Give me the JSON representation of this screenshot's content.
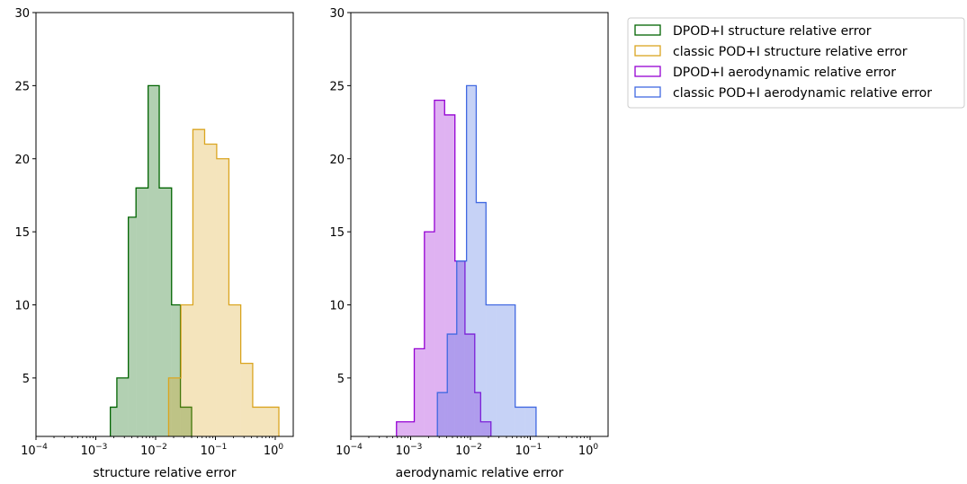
{
  "chart_data": [
    {
      "type": "histogram",
      "xlabel": "structure relative error",
      "ylabel": "",
      "xscale": "log",
      "xlim": [
        0.0001,
        2
      ],
      "ylim": [
        1,
        30
      ],
      "xticks": [
        {
          "value": 0.0001,
          "base": "10",
          "exp": "−4"
        },
        {
          "value": 0.001,
          "base": "10",
          "exp": "−3"
        },
        {
          "value": 0.01,
          "base": "10",
          "exp": "−2"
        },
        {
          "value": 0.1,
          "base": "10",
          "exp": "−1"
        },
        {
          "value": 1,
          "base": "10",
          "exp": "0"
        }
      ],
      "yticks": [
        5,
        10,
        15,
        20,
        25,
        30
      ],
      "series": [
        {
          "name": "DPOD+I structure relative error",
          "color": "#006400",
          "fill": "rgba(0,100,0,0.30)",
          "bins": [
            {
              "x0": 0.00175,
              "x1": 0.00225,
              "count": 3
            },
            {
              "x0": 0.00225,
              "x1": 0.0035,
              "count": 5
            },
            {
              "x0": 0.0035,
              "x1": 0.0047,
              "count": 16
            },
            {
              "x0": 0.0047,
              "x1": 0.0075,
              "count": 18
            },
            {
              "x0": 0.0075,
              "x1": 0.0115,
              "count": 25
            },
            {
              "x0": 0.0115,
              "x1": 0.0185,
              "count": 18
            },
            {
              "x0": 0.0185,
              "x1": 0.026,
              "count": 10
            },
            {
              "x0": 0.026,
              "x1": 0.04,
              "count": 3
            }
          ]
        },
        {
          "name": "classic POD+I structure relative error",
          "color": "#DAA520",
          "fill": "rgba(218,165,32,0.30)",
          "bins": [
            {
              "x0": 0.0165,
              "x1": 0.0265,
              "count": 5
            },
            {
              "x0": 0.0265,
              "x1": 0.042,
              "count": 10
            },
            {
              "x0": 0.042,
              "x1": 0.066,
              "count": 22
            },
            {
              "x0": 0.066,
              "x1": 0.105,
              "count": 21
            },
            {
              "x0": 0.105,
              "x1": 0.168,
              "count": 20
            },
            {
              "x0": 0.168,
              "x1": 0.265,
              "count": 10
            },
            {
              "x0": 0.265,
              "x1": 0.42,
              "count": 6
            },
            {
              "x0": 0.42,
              "x1": 1.15,
              "count": 3
            }
          ]
        }
      ]
    },
    {
      "type": "histogram",
      "xlabel": "aerodynamic relative error",
      "ylabel": "",
      "xscale": "log",
      "xlim": [
        0.0001,
        2
      ],
      "ylim": [
        1,
        30
      ],
      "xticks": [
        {
          "value": 0.0001,
          "base": "10",
          "exp": "−4"
        },
        {
          "value": 0.001,
          "base": "10",
          "exp": "−3"
        },
        {
          "value": 0.01,
          "base": "10",
          "exp": "−2"
        },
        {
          "value": 0.1,
          "base": "10",
          "exp": "−1"
        },
        {
          "value": 1,
          "base": "10",
          "exp": "0"
        }
      ],
      "yticks": [
        5,
        10,
        15,
        20,
        25,
        30
      ],
      "series": [
        {
          "name": "DPOD+I aerodynamic relative error",
          "color": "#9400D3",
          "fill": "rgba(148,0,211,0.30)",
          "bins": [
            {
              "x0": 0.00058,
              "x1": 0.00115,
              "count": 2
            },
            {
              "x0": 0.00115,
              "x1": 0.0017,
              "count": 7
            },
            {
              "x0": 0.0017,
              "x1": 0.0025,
              "count": 15
            },
            {
              "x0": 0.0025,
              "x1": 0.0037,
              "count": 24
            },
            {
              "x0": 0.0037,
              "x1": 0.0055,
              "count": 23
            },
            {
              "x0": 0.0055,
              "x1": 0.0081,
              "count": 13
            },
            {
              "x0": 0.0081,
              "x1": 0.0118,
              "count": 8
            },
            {
              "x0": 0.0118,
              "x1": 0.0148,
              "count": 4
            },
            {
              "x0": 0.0148,
              "x1": 0.022,
              "count": 2
            }
          ]
        },
        {
          "name": "classic POD+I aerodynamic relative error",
          "color": "#4169E1",
          "fill": "rgba(65,105,225,0.30)",
          "bins": [
            {
              "x0": 0.0028,
              "x1": 0.0041,
              "count": 4
            },
            {
              "x0": 0.0041,
              "x1": 0.0059,
              "count": 8
            },
            {
              "x0": 0.0059,
              "x1": 0.0086,
              "count": 13
            },
            {
              "x0": 0.0086,
              "x1": 0.0125,
              "count": 25
            },
            {
              "x0": 0.0125,
              "x1": 0.0182,
              "count": 17
            },
            {
              "x0": 0.0182,
              "x1": 0.0265,
              "count": 10
            },
            {
              "x0": 0.0265,
              "x1": 0.0385,
              "count": 10
            },
            {
              "x0": 0.0385,
              "x1": 0.056,
              "count": 10
            },
            {
              "x0": 0.056,
              "x1": 0.082,
              "count": 3
            },
            {
              "x0": 0.082,
              "x1": 0.125,
              "count": 3
            }
          ]
        }
      ]
    }
  ],
  "legend": {
    "placement": "top-right",
    "entries": [
      {
        "label": "DPOD+I structure relative error",
        "edge": "#006400",
        "face": "#ffffff"
      },
      {
        "label": "classic POD+I structure relative error",
        "edge": "#DAA520",
        "face": "#ffffff"
      },
      {
        "label": "DPOD+I aerodynamic relative error",
        "edge": "#9400D3",
        "face": "#ffffff"
      },
      {
        "label": "classic POD+I aerodynamic relative error",
        "edge": "#4169E1",
        "face": "#ffffff"
      }
    ]
  }
}
